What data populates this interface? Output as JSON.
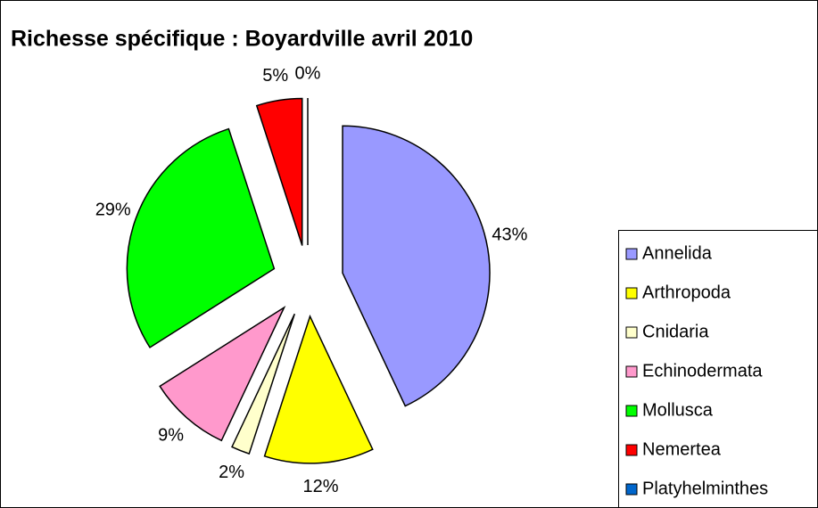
{
  "chart_data": {
    "type": "pie",
    "title": "Richesse spécifique :  Boyardville avril 2010",
    "categories": [
      "Annelida",
      "Arthropoda",
      "Cnidaria",
      "Echinodermata",
      "Mollusca",
      "Nemertea",
      "Platyhelminthes"
    ],
    "values": [
      43,
      12,
      2,
      9,
      29,
      5,
      0
    ],
    "value_labels": [
      "43%",
      "12%",
      "2%",
      "9%",
      "29%",
      "5%",
      "0%"
    ],
    "colors": [
      "#9999ff",
      "#ffff00",
      "#ffffcc",
      "#ff99cc",
      "#00ff00",
      "#ff0000",
      "#0066cc"
    ],
    "legend": "right"
  }
}
